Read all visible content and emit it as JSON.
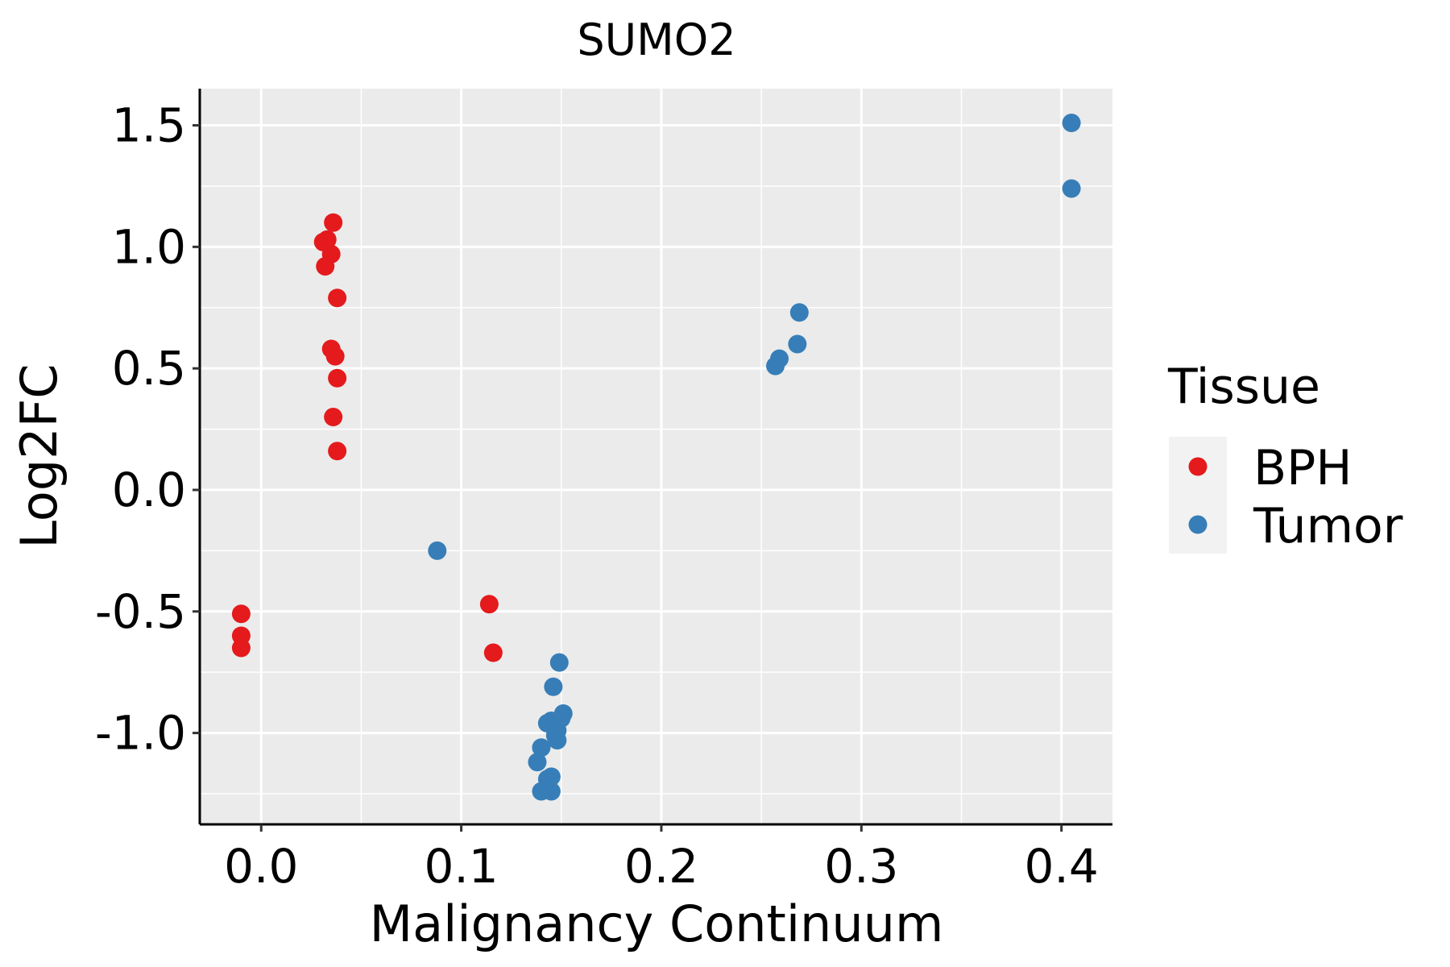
{
  "chart_data": {
    "type": "scatter",
    "title": "SUMO2",
    "xlabel": "Malignancy Continuum",
    "ylabel": "Log2FC",
    "xlim": [
      -0.0307,
      0.4255
    ],
    "ylim": [
      -1.376,
      1.651
    ],
    "xticks": [
      0.0,
      0.1,
      0.2,
      0.3,
      0.4
    ],
    "xtick_labels": [
      "0.0",
      "0.1",
      "0.2",
      "0.3",
      "0.4"
    ],
    "yticks": [
      1.5,
      1.0,
      0.5,
      0.0,
      -0.5,
      -1.0
    ],
    "ytick_labels": [
      "1.5",
      "1.0",
      "0.5",
      "0.0",
      "-0.5",
      "-1.0"
    ],
    "grid": true,
    "legend": {
      "title": "Tissue",
      "placement": "right"
    },
    "series": [
      {
        "name": "BPH",
        "color": "#E41A1C",
        "points": [
          [
            -0.01,
            -0.51
          ],
          [
            -0.01,
            -0.6
          ],
          [
            -0.01,
            -0.65
          ],
          [
            0.036,
            1.1
          ],
          [
            0.031,
            1.02
          ],
          [
            0.033,
            1.03
          ],
          [
            0.035,
            0.97
          ],
          [
            0.032,
            0.92
          ],
          [
            0.038,
            0.79
          ],
          [
            0.035,
            0.58
          ],
          [
            0.037,
            0.55
          ],
          [
            0.038,
            0.46
          ],
          [
            0.036,
            0.3
          ],
          [
            0.038,
            0.16
          ],
          [
            0.114,
            -0.47
          ],
          [
            0.116,
            -0.67
          ]
        ]
      },
      {
        "name": "Tumor",
        "color": "#377EB8",
        "points": [
          [
            0.088,
            -0.25
          ],
          [
            0.149,
            -0.71
          ],
          [
            0.146,
            -0.81
          ],
          [
            0.151,
            -0.92
          ],
          [
            0.15,
            -0.94
          ],
          [
            0.145,
            -0.95
          ],
          [
            0.143,
            -0.96
          ],
          [
            0.148,
            -0.99
          ],
          [
            0.147,
            -1.01
          ],
          [
            0.148,
            -1.03
          ],
          [
            0.14,
            -1.06
          ],
          [
            0.138,
            -1.12
          ],
          [
            0.143,
            -1.19
          ],
          [
            0.145,
            -1.18
          ],
          [
            0.14,
            -1.24
          ],
          [
            0.145,
            -1.24
          ],
          [
            0.257,
            0.51
          ],
          [
            0.259,
            0.54
          ],
          [
            0.268,
            0.6
          ],
          [
            0.269,
            0.73
          ],
          [
            0.405,
            1.51
          ],
          [
            0.405,
            1.24
          ]
        ]
      }
    ]
  }
}
